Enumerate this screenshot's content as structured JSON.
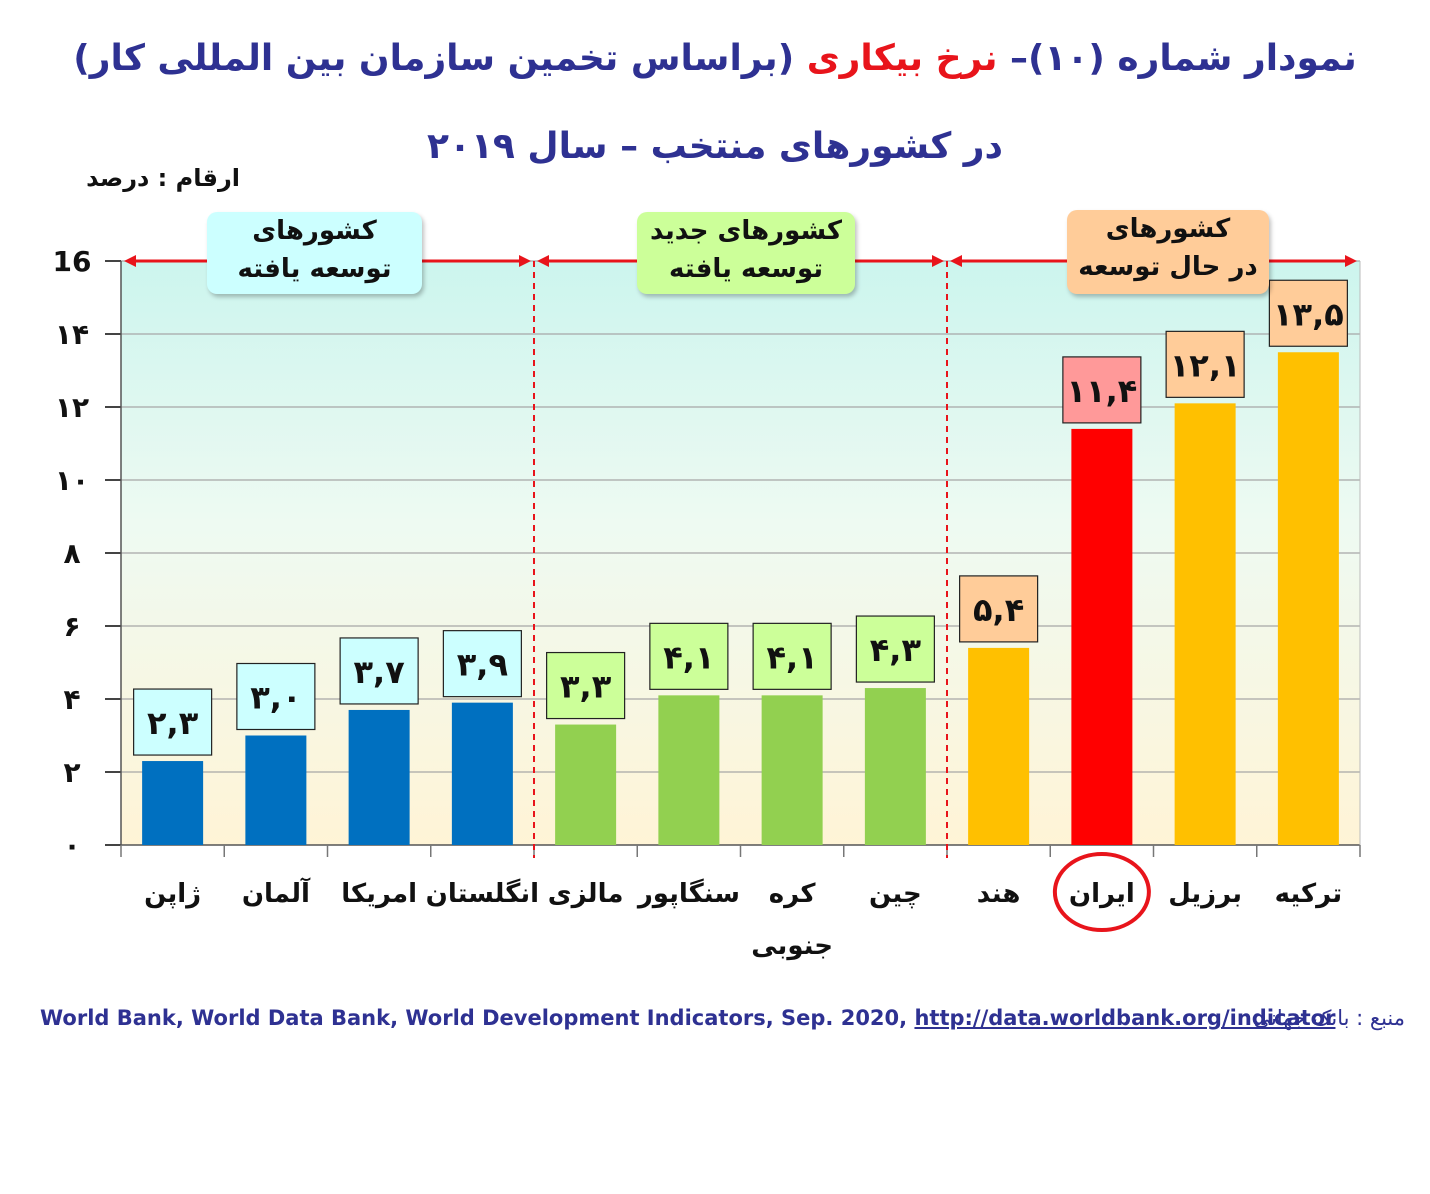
{
  "title": {
    "part1": "نمودار شماره (۱۰)– ",
    "part2_red": "نرخ بیکاری",
    "part3": " (براساس تخمین سازمان بین المللی کار)",
    "line2": "در کشورهای منتخب – سال ۲۰۱۹"
  },
  "units_label": "ارقام : درصد",
  "groups": [
    {
      "line1": "کشورهای",
      "line2": "توسعه یافته",
      "color": "#ccffff"
    },
    {
      "line1": "کشورهای جدید",
      "line2": "توسعه یافته",
      "color": "#ccff99"
    },
    {
      "line1": "کشورهای",
      "line2": "در حال توسعه",
      "color": "#ffcc99"
    }
  ],
  "colors": {
    "developed": "#0070c0",
    "new_developed": "#92d050",
    "developing": "#ffc000",
    "highlight": "#ff0000",
    "label_developed": "#ccffff",
    "label_new": "#ccff99",
    "label_developing": "#ffcc99",
    "label_highlight": "#ff9999",
    "divider": "#e8141b",
    "title_blue": "#2e3192"
  },
  "source": {
    "label": "منبع : بانک جهانی",
    "text": "World Bank, World Data Bank, World Development Indicators, Sep. 2020, ",
    "url": "http://data.worldbank.org/indicator"
  },
  "chart_data": {
    "type": "bar",
    "title": "نمودار شماره (۱۰)– نرخ بیکاری (براساس تخمین سازمان بین المللی کار) در کشورهای منتخب – سال ۲۰۱۹",
    "ylabel": "ارقام : درصد",
    "xlabel": "",
    "ylim": [
      0,
      16
    ],
    "yticks": [
      0,
      2,
      4,
      6,
      8,
      10,
      12,
      14,
      16
    ],
    "ytick_labels": [
      "۰",
      "۲",
      "۴",
      "۶",
      "۸",
      "۱۰",
      "۱۲",
      "۱۴",
      "16"
    ],
    "grid": true,
    "categories": [
      "ژاپن",
      "آلمان",
      "امریکا",
      "انگلستان",
      "مالزی",
      "سنگاپور",
      "کره جنوبی",
      "چین",
      "هند",
      "ایران",
      "برزیل",
      "ترکیه"
    ],
    "category_lines": [
      [
        "ژاپن"
      ],
      [
        "آلمان"
      ],
      [
        "امریکا"
      ],
      [
        "انگلستان"
      ],
      [
        "مالزی"
      ],
      [
        "سنگاپور"
      ],
      [
        "کره",
        "جنوبی"
      ],
      [
        "چین"
      ],
      [
        "هند"
      ],
      [
        "ایران"
      ],
      [
        "برزیل"
      ],
      [
        "ترکیه"
      ]
    ],
    "values": [
      2.3,
      3.0,
      3.7,
      3.9,
      3.3,
      4.1,
      4.1,
      4.3,
      5.4,
      11.4,
      12.1,
      13.5
    ],
    "value_labels": [
      "۲,۳",
      "۳,۰",
      "۳,۷",
      "۳,۹",
      "۳,۳",
      "۴,۱",
      "۴,۱",
      "۴,۳",
      "۵,۴",
      "۱۱,۴",
      "۱۲,۱",
      "۱۳,۵"
    ],
    "group_index": [
      0,
      0,
      0,
      0,
      1,
      1,
      1,
      1,
      2,
      2,
      2,
      2
    ],
    "highlight_index": 9
  }
}
